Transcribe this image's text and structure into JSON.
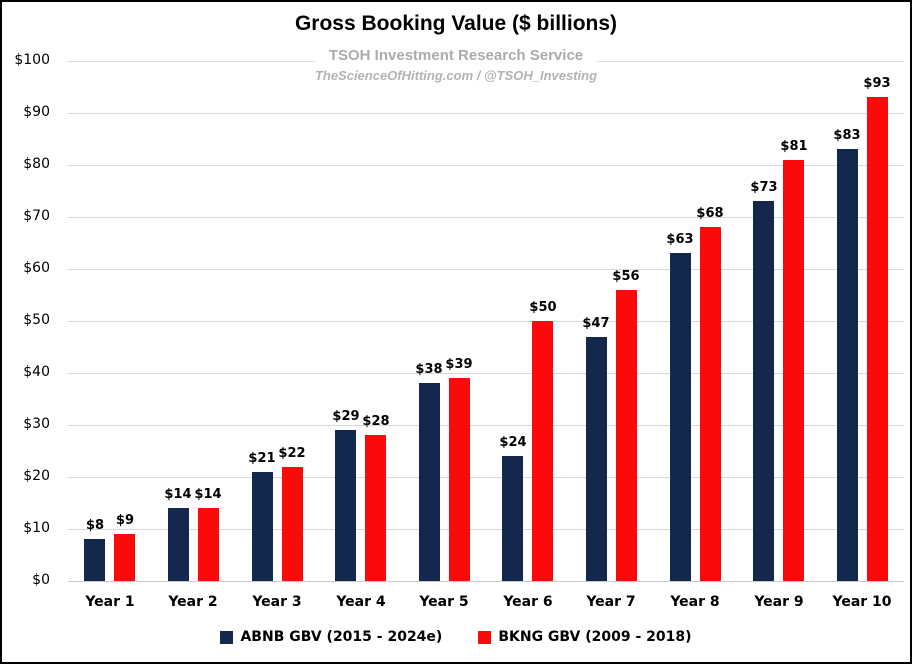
{
  "title": "Gross Booking Value ($ billions)",
  "subtitle": "TSOH Investment Research Service",
  "tagline": "TheScienceOfHitting.com / @TSOH_Investing",
  "colors": {
    "abnb_navy": "#14284E",
    "bkng_red": "#FA0A0A",
    "gridline": "#D9D9D9",
    "subtitle_gray": "#ABABAB",
    "text_black": "#000000",
    "background": "#FFFFFF"
  },
  "chart_data": {
    "type": "bar",
    "title": "Gross Booking Value ($ billions)",
    "subtitle": "TSOH Investment Research Service",
    "annotation": "TheScienceOfHitting.com / @TSOH_Investing",
    "categories": [
      "Year 1",
      "Year 2",
      "Year 3",
      "Year 4",
      "Year 5",
      "Year 6",
      "Year 7",
      "Year 8",
      "Year 9",
      "Year 10"
    ],
    "series": [
      {
        "name": "ABNB GBV (2015 - 2024e)",
        "color": "#14284E",
        "values": [
          8,
          14,
          21,
          29,
          38,
          24,
          47,
          63,
          73,
          83
        ]
      },
      {
        "name": "BKNG GBV (2009 - 2018)",
        "color": "#FA0A0A",
        "values": [
          9,
          14,
          22,
          28,
          39,
          50,
          56,
          68,
          81,
          93
        ]
      }
    ],
    "value_prefix": "$",
    "xlabel": "",
    "ylabel": "",
    "ylim": [
      0,
      100
    ],
    "ytick_step": 10,
    "ytick_labels": [
      "$0",
      "$10",
      "$20",
      "$30",
      "$40",
      "$50",
      "$60",
      "$70",
      "$80",
      "$90",
      "$100"
    ],
    "grid": true,
    "legend_position": "bottom"
  }
}
